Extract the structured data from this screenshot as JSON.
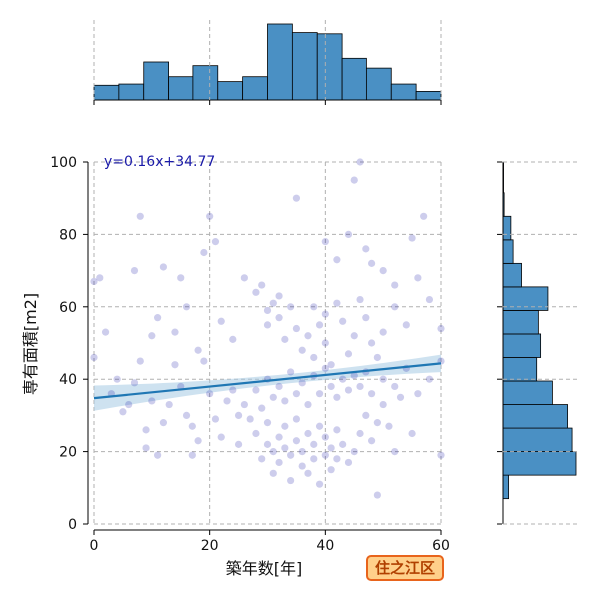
{
  "chart_data": {
    "type": "scatter",
    "xlabel": "築年数[年]",
    "ylabel": "専有面積[m2]",
    "xlim": [
      0,
      60
    ],
    "ylim": [
      0,
      100
    ],
    "x_ticks": [
      "0",
      "20",
      "40",
      "60"
    ],
    "y_ticks": [
      "0",
      "20",
      "40",
      "60",
      "80",
      "100"
    ],
    "grid": true,
    "regression": {
      "equation_label": "y=0.16x+34.77",
      "slope": 0.16,
      "intercept": 34.77,
      "color": "#1f77b4",
      "band_color": "#a6cbe3"
    },
    "point_color": "#1a1aa8",
    "hist_color": "#4a90c4",
    "x_histogram": {
      "bin_edges": [
        0,
        4.3,
        8.6,
        12.9,
        17.1,
        21.4,
        25.7,
        30,
        34.3,
        38.6,
        42.9,
        47.1,
        51.4,
        55.7,
        60
      ],
      "counts": [
        12,
        13,
        31,
        19,
        28,
        15,
        19,
        62,
        55,
        54,
        34,
        26,
        13,
        7
      ]
    },
    "y_histogram": {
      "bin_edges": [
        7,
        13.5,
        20,
        26.5,
        33,
        39.5,
        46,
        52.5,
        59,
        65.5,
        72,
        78.5,
        85,
        91.5,
        98,
        100
      ],
      "counts": [
        10,
        130,
        123,
        115,
        88,
        60,
        67,
        63,
        80,
        33,
        18,
        14,
        2,
        1,
        1
      ]
    },
    "points": [
      [
        0,
        67
      ],
      [
        0,
        46
      ],
      [
        1,
        68
      ],
      [
        2,
        53
      ],
      [
        3,
        36
      ],
      [
        4,
        40
      ],
      [
        5,
        31
      ],
      [
        6,
        33
      ],
      [
        7,
        39
      ],
      [
        8,
        45
      ],
      [
        9,
        26
      ],
      [
        9,
        21
      ],
      [
        10,
        34
      ],
      [
        10,
        52
      ],
      [
        11,
        19
      ],
      [
        12,
        28
      ],
      [
        13,
        33
      ],
      [
        14,
        44
      ],
      [
        15,
        38
      ],
      [
        16,
        30
      ],
      [
        17,
        27
      ],
      [
        17,
        19
      ],
      [
        18,
        23
      ],
      [
        19,
        45
      ],
      [
        20,
        36
      ],
      [
        21,
        29
      ],
      [
        22,
        24
      ],
      [
        23,
        34
      ],
      [
        24,
        37
      ],
      [
        25,
        22
      ],
      [
        7,
        70
      ],
      [
        8,
        85
      ],
      [
        11,
        57
      ],
      [
        15,
        68
      ],
      [
        19,
        75
      ],
      [
        20,
        85
      ],
      [
        21,
        78
      ],
      [
        22,
        56
      ],
      [
        26,
        68
      ],
      [
        28,
        64
      ],
      [
        29,
        66
      ],
      [
        30,
        59
      ],
      [
        30,
        55
      ],
      [
        31,
        61
      ],
      [
        32,
        63
      ],
      [
        32,
        57
      ],
      [
        33,
        51
      ],
      [
        34,
        60
      ],
      [
        35,
        54
      ],
      [
        36,
        48
      ],
      [
        37,
        52
      ],
      [
        38,
        46
      ],
      [
        38,
        60
      ],
      [
        39,
        55
      ],
      [
        40,
        58
      ],
      [
        40,
        50
      ],
      [
        41,
        44
      ],
      [
        42,
        61
      ],
      [
        43,
        56
      ],
      [
        44,
        47
      ],
      [
        45,
        52
      ],
      [
        46,
        62
      ],
      [
        47,
        57
      ],
      [
        48,
        50
      ],
      [
        49,
        46
      ],
      [
        50,
        53
      ],
      [
        52,
        60
      ],
      [
        54,
        55
      ],
      [
        56,
        68
      ],
      [
        58,
        62
      ],
      [
        28,
        25
      ],
      [
        29,
        18
      ],
      [
        30,
        22
      ],
      [
        30,
        28
      ],
      [
        31,
        20
      ],
      [
        31,
        14
      ],
      [
        32,
        24
      ],
      [
        32,
        17
      ],
      [
        33,
        27
      ],
      [
        33,
        21
      ],
      [
        34,
        19
      ],
      [
        34,
        12
      ],
      [
        35,
        23
      ],
      [
        35,
        29
      ],
      [
        36,
        16
      ],
      [
        36,
        20
      ],
      [
        37,
        25
      ],
      [
        37,
        14
      ],
      [
        38,
        18
      ],
      [
        38,
        22
      ],
      [
        39,
        11
      ],
      [
        39,
        27
      ],
      [
        40,
        19
      ],
      [
        40,
        24
      ],
      [
        41,
        15
      ],
      [
        41,
        21
      ],
      [
        42,
        26
      ],
      [
        42,
        18
      ],
      [
        43,
        22
      ],
      [
        44,
        17
      ],
      [
        45,
        20
      ],
      [
        46,
        25
      ],
      [
        47,
        30
      ],
      [
        48,
        23
      ],
      [
        49,
        28
      ],
      [
        50,
        33
      ],
      [
        51,
        27
      ],
      [
        52,
        20
      ],
      [
        53,
        35
      ],
      [
        55,
        25
      ],
      [
        25,
        30
      ],
      [
        26,
        33
      ],
      [
        27,
        29
      ],
      [
        28,
        37
      ],
      [
        29,
        32
      ],
      [
        30,
        40
      ],
      [
        31,
        35
      ],
      [
        32,
        38
      ],
      [
        33,
        34
      ],
      [
        34,
        42
      ],
      [
        35,
        36
      ],
      [
        36,
        39
      ],
      [
        37,
        33
      ],
      [
        38,
        41
      ],
      [
        39,
        36
      ],
      [
        40,
        43
      ],
      [
        41,
        38
      ],
      [
        42,
        35
      ],
      [
        43,
        40
      ],
      [
        44,
        37
      ],
      [
        45,
        41
      ],
      [
        46,
        38
      ],
      [
        47,
        42
      ],
      [
        48,
        36
      ],
      [
        50,
        40
      ],
      [
        52,
        38
      ],
      [
        54,
        43
      ],
      [
        56,
        36
      ],
      [
        58,
        40
      ],
      [
        60,
        45
      ],
      [
        35,
        90
      ],
      [
        40,
        78
      ],
      [
        42,
        73
      ],
      [
        44,
        80
      ],
      [
        45,
        95
      ],
      [
        46,
        100
      ],
      [
        47,
        76
      ],
      [
        48,
        72
      ],
      [
        50,
        70
      ],
      [
        52,
        66
      ],
      [
        55,
        79
      ],
      [
        57,
        85
      ],
      [
        60,
        54
      ],
      [
        60,
        19
      ],
      [
        49,
        8
      ],
      [
        12,
        71
      ],
      [
        14,
        53
      ],
      [
        16,
        60
      ],
      [
        18,
        48
      ],
      [
        24,
        51
      ]
    ]
  },
  "badge": {
    "text": "住之江区"
  }
}
